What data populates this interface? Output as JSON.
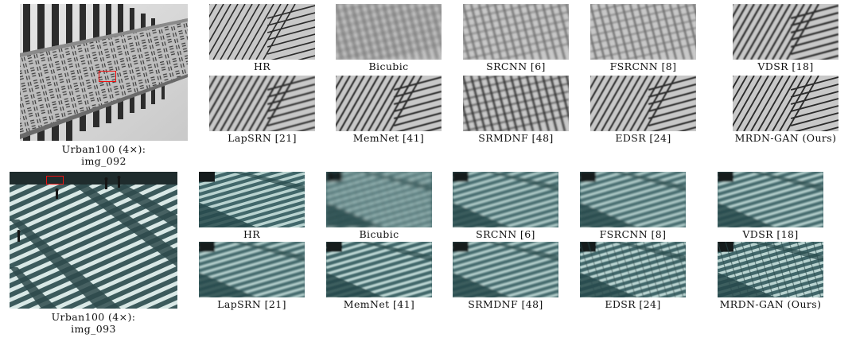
{
  "figures": [
    {
      "overview_caption_line1": "Urban100 (4×):",
      "overview_caption_line2": "img_092",
      "methods": [
        "HR",
        "Bicubic",
        "SRCNN [6]",
        "FSRCNN [8]",
        "VDSR [18]",
        "LapSRN [21]",
        "MemNet [41]",
        "SRMDNF [48]",
        "EDSR [24]",
        "MRDN-GAN (Ours)"
      ]
    },
    {
      "overview_caption_line1": "Urban100 (4×):",
      "overview_caption_line2": "img_093",
      "methods": [
        "HR",
        "Bicubic",
        "SRCNN [6]",
        "FSRCNN [8]",
        "VDSR [18]",
        "LapSRN [21]",
        "MemNet [41]",
        "SRMDNF [48]",
        "EDSR [24]",
        "MRDN-GAN (Ours)"
      ]
    }
  ]
}
